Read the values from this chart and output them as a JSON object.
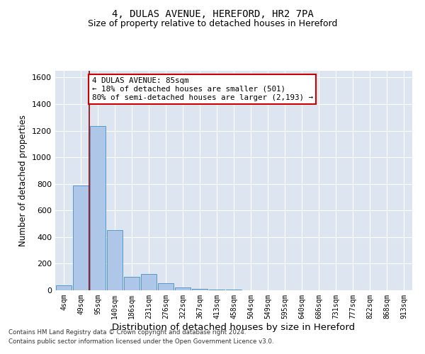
{
  "title1": "4, DULAS AVENUE, HEREFORD, HR2 7PA",
  "title2": "Size of property relative to detached houses in Hereford",
  "xlabel": "Distribution of detached houses by size in Hereford",
  "ylabel": "Number of detached properties",
  "bar_labels": [
    "4sqm",
    "49sqm",
    "95sqm",
    "140sqm",
    "186sqm",
    "231sqm",
    "276sqm",
    "322sqm",
    "367sqm",
    "413sqm",
    "458sqm",
    "504sqm",
    "549sqm",
    "595sqm",
    "640sqm",
    "686sqm",
    "731sqm",
    "777sqm",
    "822sqm",
    "868sqm",
    "913sqm"
  ],
  "bar_values": [
    35,
    790,
    1235,
    455,
    100,
    120,
    55,
    20,
    10,
    5,
    5,
    0,
    0,
    0,
    0,
    0,
    0,
    0,
    0,
    0,
    0
  ],
  "bar_color": "#aec6e8",
  "bar_edge_color": "#5599cc",
  "vline_color": "#990000",
  "annotation_line1": "4 DULAS AVENUE: 85sqm",
  "annotation_line2": "← 18% of detached houses are smaller (501)",
  "annotation_line3": "80% of semi-detached houses are larger (2,193) →",
  "annotation_box_color": "#ffffff",
  "annotation_box_edge": "#cc0000",
  "ylim": [
    0,
    1650
  ],
  "yticks": [
    0,
    200,
    400,
    600,
    800,
    1000,
    1200,
    1400,
    1600
  ],
  "bg_color": "#dde6f0",
  "grid_color": "#ffffff",
  "footer1": "Contains HM Land Registry data © Crown copyright and database right 2024.",
  "footer2": "Contains public sector information licensed under the Open Government Licence v3.0."
}
